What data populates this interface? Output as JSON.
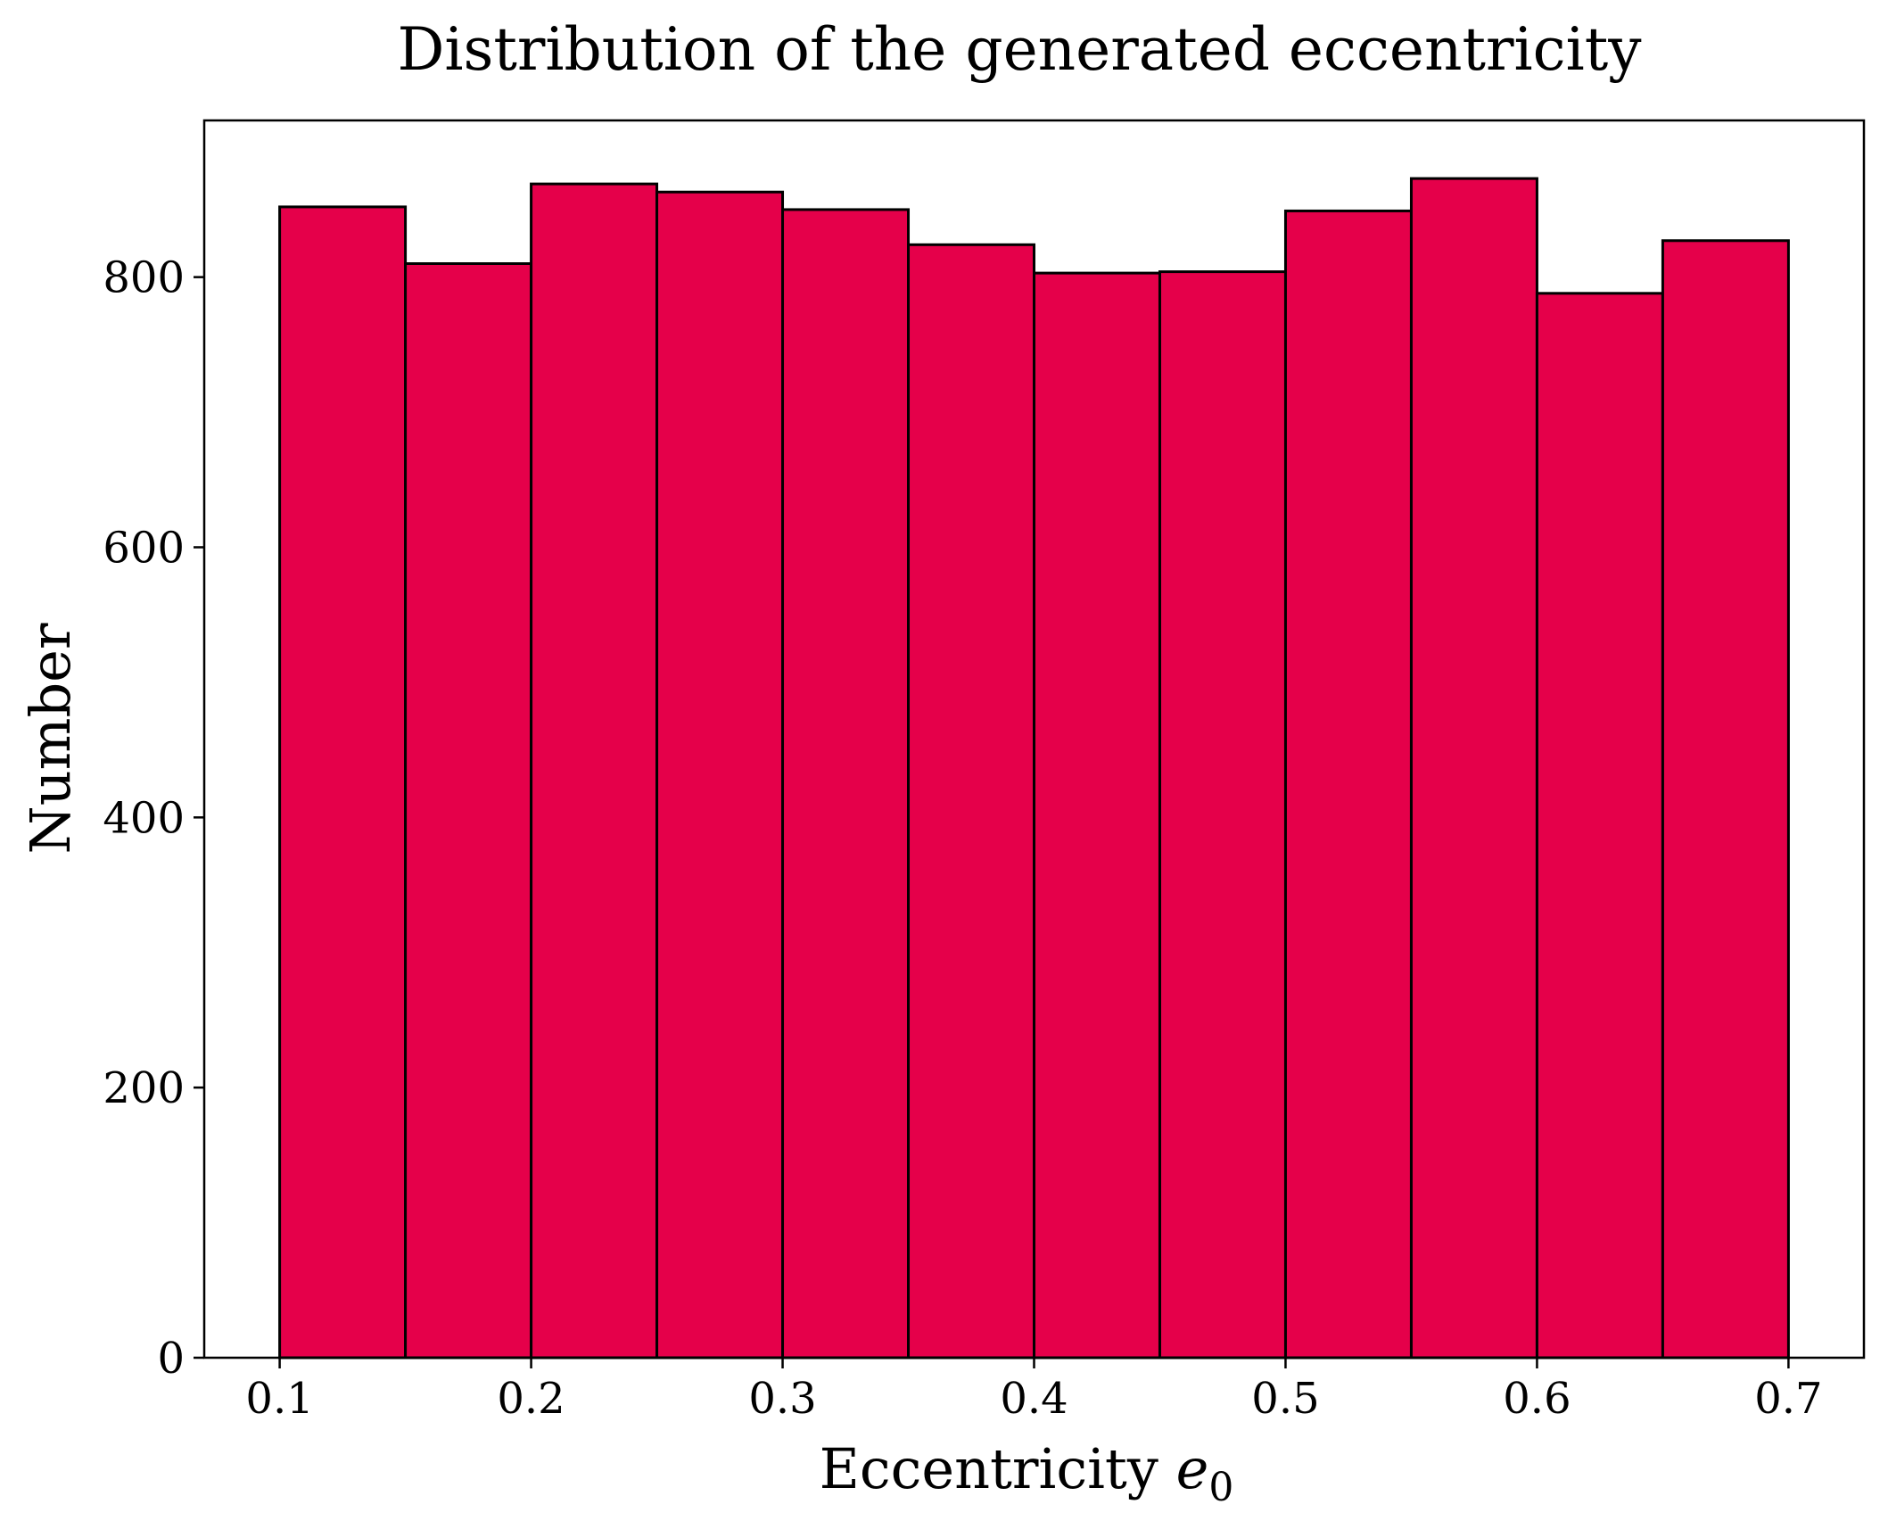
{
  "chart_data": {
    "type": "bar",
    "title": "Distribution of the generated eccentricity",
    "xlabel": "Eccentricity",
    "xlabel_symbol": "e",
    "xlabel_subscript": "0",
    "ylabel": "Number",
    "bin_edges": [
      0.1,
      0.15,
      0.2,
      0.25,
      0.3,
      0.35,
      0.4,
      0.45,
      0.5,
      0.55,
      0.6,
      0.65,
      0.7
    ],
    "values": [
      852,
      810,
      869,
      863,
      850,
      824,
      803,
      804,
      849,
      873,
      788,
      827
    ],
    "xlim": [
      0.07,
      0.73
    ],
    "ylim": [
      0,
      916
    ],
    "xticks": [
      0.1,
      0.2,
      0.3,
      0.4,
      0.5,
      0.6,
      0.7
    ],
    "xtick_labels": [
      "0.1",
      "0.2",
      "0.3",
      "0.4",
      "0.5",
      "0.6",
      "0.7"
    ],
    "yticks": [
      0,
      200,
      400,
      600,
      800
    ],
    "ytick_labels": [
      "0",
      "200",
      "400",
      "600",
      "800"
    ],
    "bar_color": "#E5004A",
    "edge_color": "#000000",
    "grid": false,
    "legend": false
  }
}
